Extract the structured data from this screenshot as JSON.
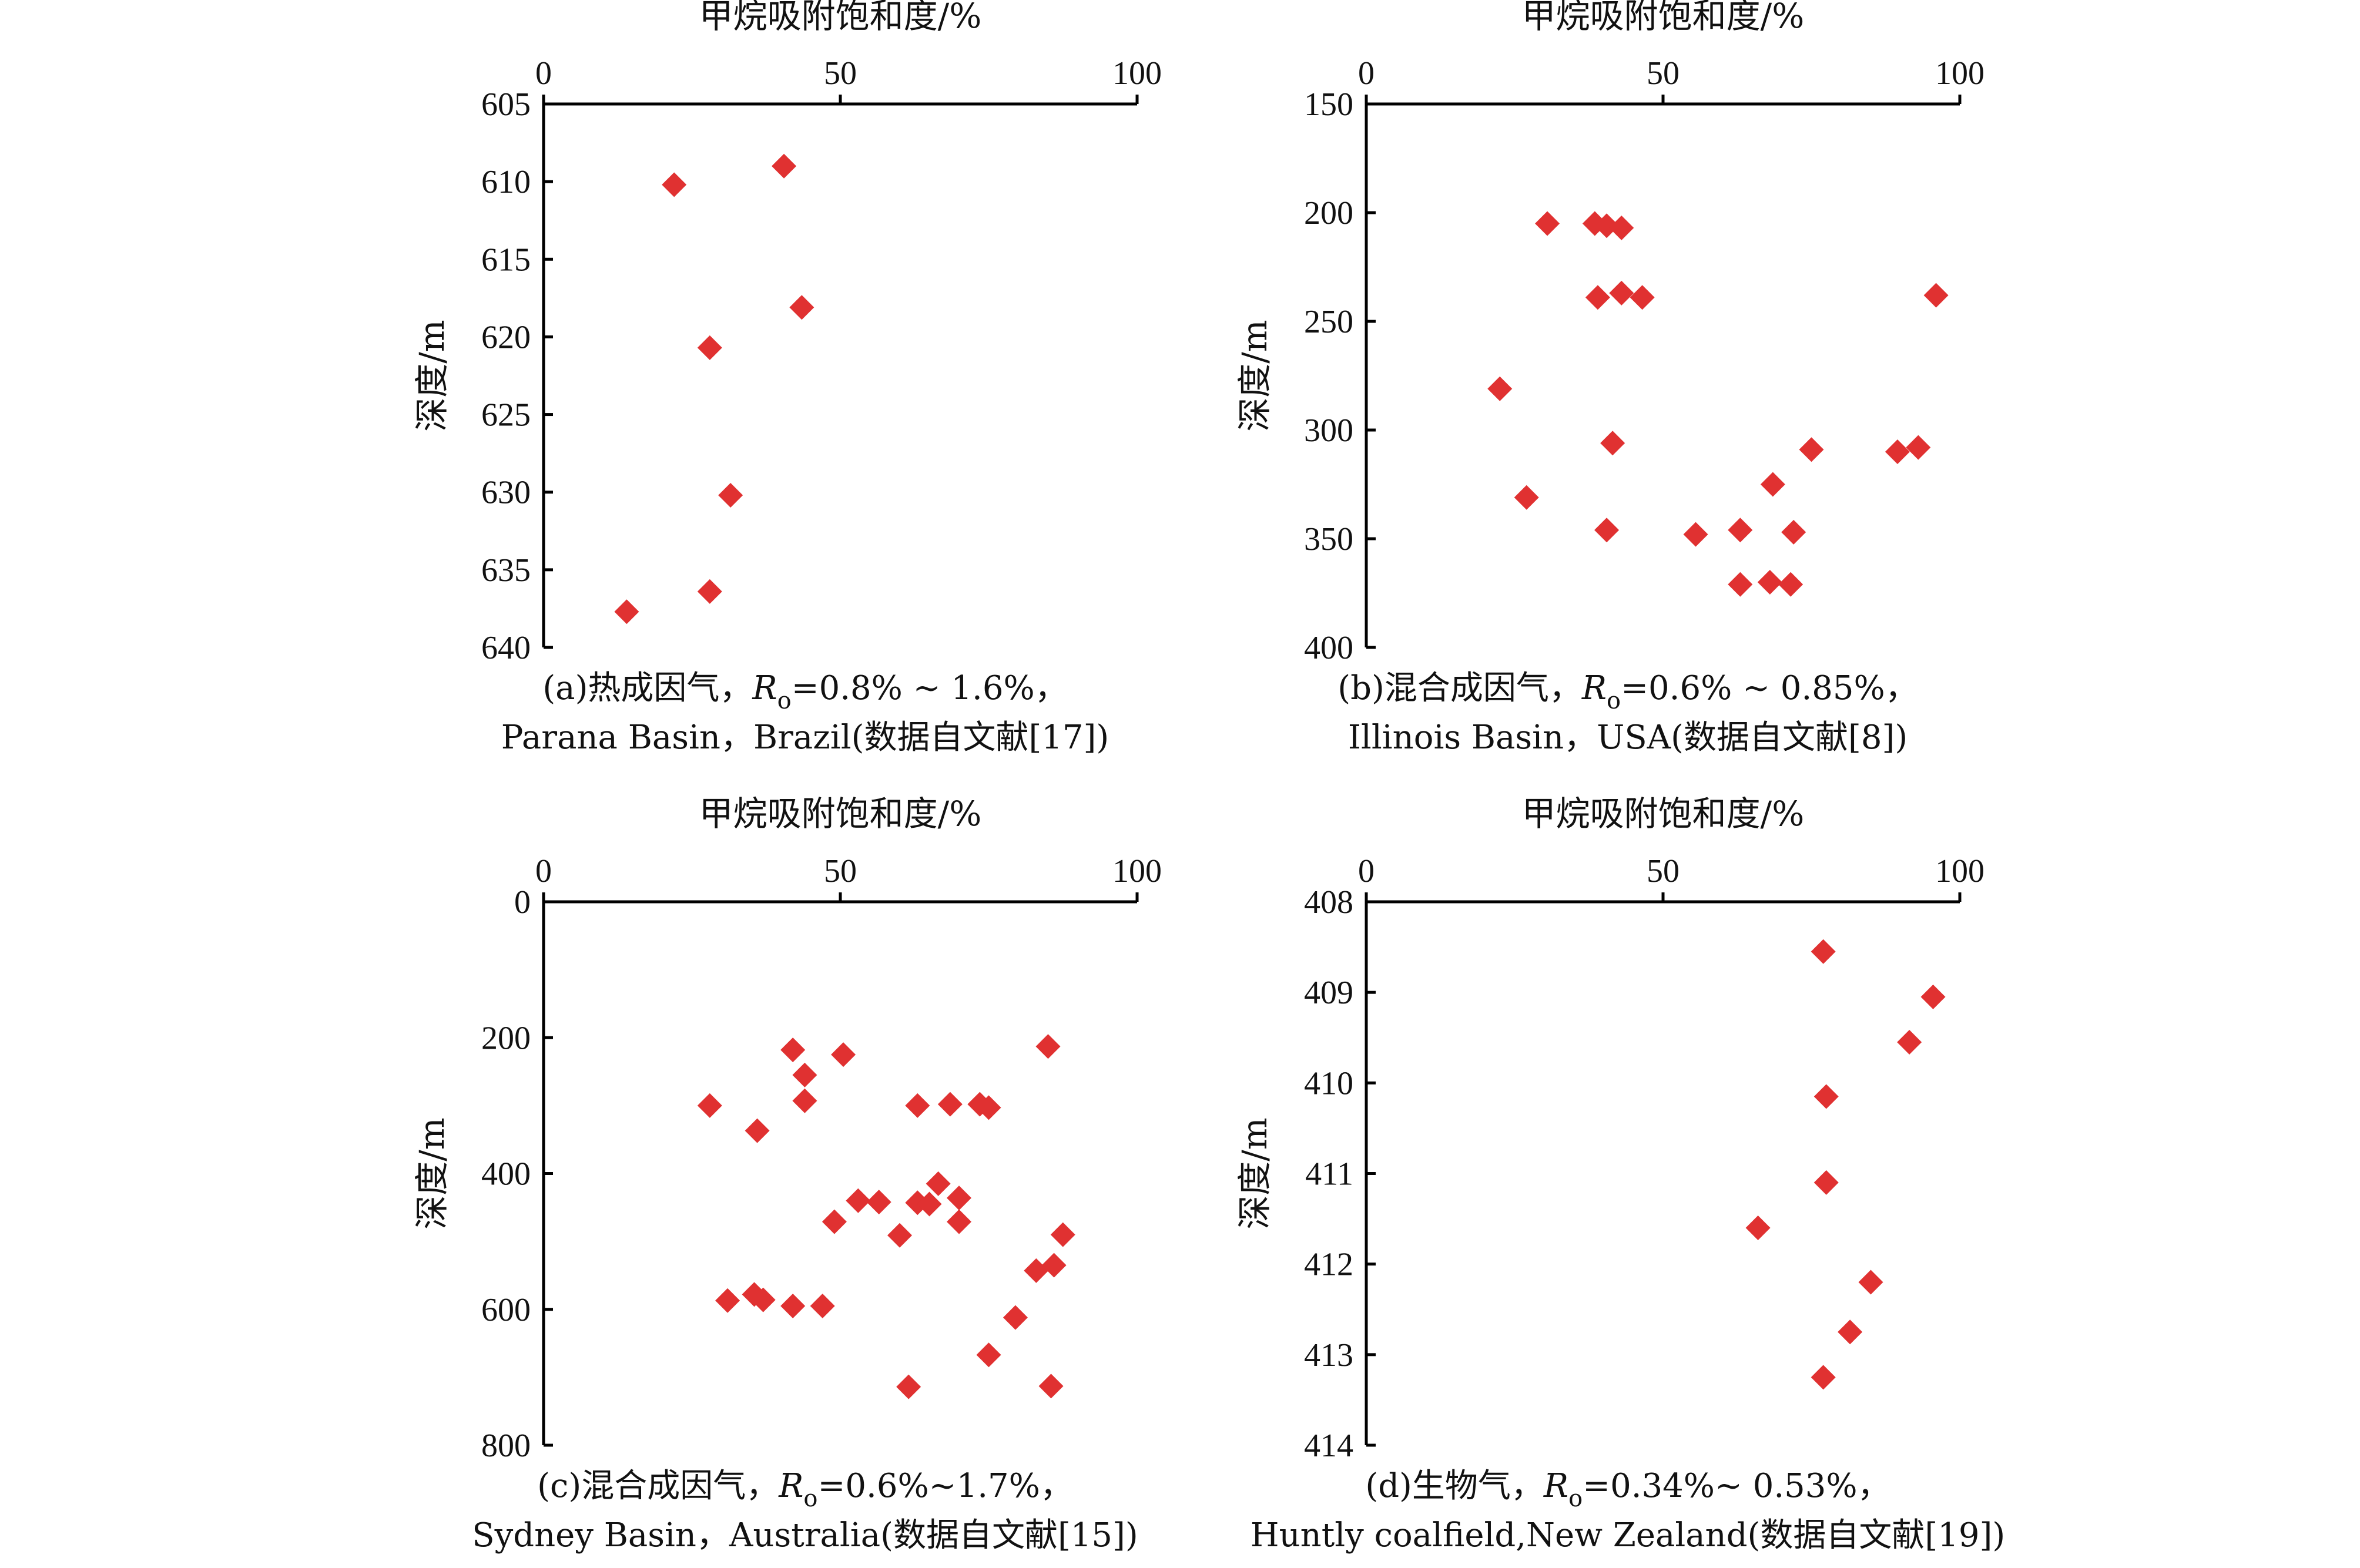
{
  "colors": {
    "marker": "#e03131",
    "axis": "#000000"
  },
  "chart_data": [
    {
      "id": "a",
      "type": "scatter",
      "xlabel": "甲烷吸附饱和度/%",
      "ylabel": "深度/m",
      "xlim": [
        0,
        100
      ],
      "ylim": [
        605,
        640
      ],
      "y_inverted": true,
      "x_axis_position": "top",
      "xticks": [
        0,
        50,
        100
      ],
      "yticks": [
        605,
        610,
        615,
        620,
        625,
        630,
        635,
        640
      ],
      "marker": "diamond",
      "caption_line1": {
        "prefix": "(a)热成因气，",
        "R": "R",
        "sub": "o",
        "suffix": "=0.8% ~ 1.6%，"
      },
      "caption_line2": "Parana Basin，Brazil(数据自文献[17])",
      "points": [
        {
          "x": 22,
          "y": 610.2
        },
        {
          "x": 40.5,
          "y": 609.0
        },
        {
          "x": 43.5,
          "y": 618.1
        },
        {
          "x": 28,
          "y": 620.7
        },
        {
          "x": 31.5,
          "y": 630.2
        },
        {
          "x": 28,
          "y": 636.4
        },
        {
          "x": 14,
          "y": 637.7
        }
      ]
    },
    {
      "id": "b",
      "type": "scatter",
      "xlabel": "甲烷吸附饱和度/%",
      "ylabel": "深度/m",
      "xlim": [
        0,
        100
      ],
      "ylim": [
        150,
        400
      ],
      "y_inverted": true,
      "x_axis_position": "top",
      "xticks": [
        0,
        50,
        100
      ],
      "yticks": [
        150,
        200,
        250,
        300,
        350,
        400
      ],
      "marker": "diamond",
      "caption_line1": {
        "prefix": "(b)混合成因气，",
        "R": "R",
        "sub": "o",
        "suffix": "=0.6% ~ 0.85%，"
      },
      "caption_line2": "Illinois Basin，USA(数据自文献[8])",
      "points": [
        {
          "x": 30.5,
          "y": 205
        },
        {
          "x": 38.5,
          "y": 205
        },
        {
          "x": 40.5,
          "y": 206
        },
        {
          "x": 43,
          "y": 207
        },
        {
          "x": 39,
          "y": 239
        },
        {
          "x": 43,
          "y": 237
        },
        {
          "x": 46.5,
          "y": 239
        },
        {
          "x": 96,
          "y": 238
        },
        {
          "x": 22.5,
          "y": 281
        },
        {
          "x": 41.5,
          "y": 306
        },
        {
          "x": 75,
          "y": 309
        },
        {
          "x": 89.5,
          "y": 310
        },
        {
          "x": 93,
          "y": 308
        },
        {
          "x": 27,
          "y": 331
        },
        {
          "x": 68.5,
          "y": 325
        },
        {
          "x": 40.5,
          "y": 346
        },
        {
          "x": 55.5,
          "y": 348
        },
        {
          "x": 63,
          "y": 346
        },
        {
          "x": 72,
          "y": 347
        },
        {
          "x": 63,
          "y": 371
        },
        {
          "x": 68,
          "y": 370
        },
        {
          "x": 71.5,
          "y": 371
        }
      ]
    },
    {
      "id": "c",
      "type": "scatter",
      "xlabel": "甲烷吸附饱和度/%",
      "ylabel": "深度/m",
      "xlim": [
        0,
        100
      ],
      "ylim": [
        0,
        800
      ],
      "y_inverted": true,
      "x_axis_position": "top",
      "xticks": [
        0,
        50,
        100
      ],
      "yticks": [
        0,
        200,
        400,
        600,
        800
      ],
      "marker": "diamond",
      "caption_line1": {
        "prefix": "(c)混合成因气，",
        "R": "R",
        "sub": "o",
        "suffix": "=0.6%~1.7%，"
      },
      "caption_line2": "Sydney Basin，Australia(数据自文献[15])",
      "points": [
        {
          "x": 42,
          "y": 218
        },
        {
          "x": 50.5,
          "y": 225
        },
        {
          "x": 85,
          "y": 213
        },
        {
          "x": 44,
          "y": 255
        },
        {
          "x": 44,
          "y": 293
        },
        {
          "x": 28,
          "y": 300
        },
        {
          "x": 63,
          "y": 300
        },
        {
          "x": 68.5,
          "y": 298
        },
        {
          "x": 73.5,
          "y": 298
        },
        {
          "x": 75,
          "y": 303
        },
        {
          "x": 36,
          "y": 337
        },
        {
          "x": 66.5,
          "y": 415
        },
        {
          "x": 53,
          "y": 440
        },
        {
          "x": 56.5,
          "y": 442
        },
        {
          "x": 63,
          "y": 443
        },
        {
          "x": 65,
          "y": 445
        },
        {
          "x": 70,
          "y": 436
        },
        {
          "x": 49,
          "y": 471
        },
        {
          "x": 70,
          "y": 471
        },
        {
          "x": 60,
          "y": 491
        },
        {
          "x": 87.5,
          "y": 490
        },
        {
          "x": 83,
          "y": 543
        },
        {
          "x": 86,
          "y": 535
        },
        {
          "x": 31,
          "y": 587
        },
        {
          "x": 35.5,
          "y": 578
        },
        {
          "x": 37,
          "y": 586
        },
        {
          "x": 42,
          "y": 595
        },
        {
          "x": 47,
          "y": 595
        },
        {
          "x": 79.5,
          "y": 612
        },
        {
          "x": 75,
          "y": 667
        },
        {
          "x": 61.5,
          "y": 714
        },
        {
          "x": 85.5,
          "y": 713
        }
      ]
    },
    {
      "id": "d",
      "type": "scatter",
      "xlabel": "甲烷吸附饱和度/%",
      "ylabel": "深度/m",
      "xlim": [
        0,
        100
      ],
      "ylim": [
        408,
        414
      ],
      "y_inverted": true,
      "x_axis_position": "top",
      "xticks": [
        0,
        50,
        100
      ],
      "yticks": [
        408,
        409,
        410,
        411,
        412,
        413,
        414
      ],
      "marker": "diamond",
      "caption_line1": {
        "prefix": "(d)生物气，",
        "R": "R",
        "sub": "o",
        "suffix": "=0.34%~ 0.53%，"
      },
      "caption_line2": "Huntly coalfield,New Zealand(数据自文献[19])",
      "points": [
        {
          "x": 77,
          "y": 408.55
        },
        {
          "x": 95.5,
          "y": 409.05
        },
        {
          "x": 91.5,
          "y": 409.55
        },
        {
          "x": 77.5,
          "y": 410.15
        },
        {
          "x": 77.5,
          "y": 411.1
        },
        {
          "x": 66,
          "y": 411.6
        },
        {
          "x": 85,
          "y": 412.2
        },
        {
          "x": 81.5,
          "y": 412.75
        },
        {
          "x": 77,
          "y": 413.25
        }
      ]
    }
  ]
}
